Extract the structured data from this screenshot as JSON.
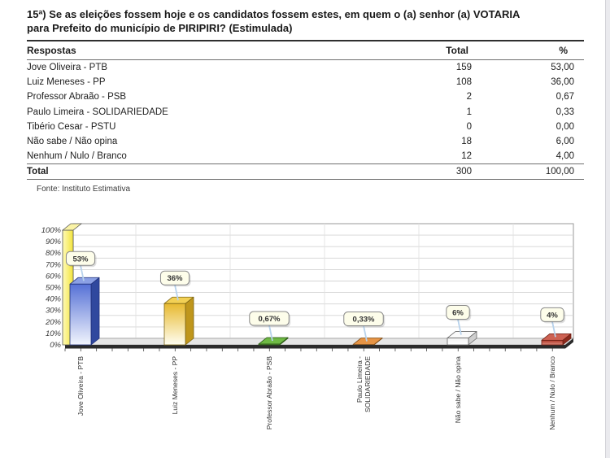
{
  "question": {
    "line1": "15ª) Se as eleições fossem hoje e os candidatos fossem estes, em quem o (a) senhor (a) VOTARIA",
    "line2": "para Prefeito do município de PIRIPIRI? (Estimulada)"
  },
  "table": {
    "headers": {
      "respostas": "Respostas",
      "total": "Total",
      "pct": "%"
    },
    "rows": [
      {
        "label": "Jove Oliveira - PTB",
        "total": "159",
        "pct": "53,00"
      },
      {
        "label": "Luiz Meneses - PP",
        "total": "108",
        "pct": "36,00"
      },
      {
        "label": "Professor Abraão - PSB",
        "total": "2",
        "pct": "0,67"
      },
      {
        "label": "Paulo Limeira - SOLIDARIEDADE",
        "total": "1",
        "pct": "0,33"
      },
      {
        "label": "Tibério Cesar - PSTU",
        "total": "0",
        "pct": "0,00"
      },
      {
        "label": "Não sabe / Não opina",
        "total": "18",
        "pct": "6,00"
      },
      {
        "label": "Nenhum / Nulo / Branco",
        "total": "12",
        "pct": "4,00"
      }
    ],
    "total_row": {
      "label": "Total",
      "total": "300",
      "pct": "100,00"
    },
    "source": "Fonte: Instituto Estimativa"
  },
  "chart_data": {
    "type": "bar",
    "categories": [
      [
        "Jove Oliveira - PTB"
      ],
      [
        "Luiz Meneses - PP"
      ],
      [
        "Professor Abraão - PSB"
      ],
      [
        "Paulo Limeira -",
        "SOLIDARIEDADE"
      ],
      [
        "Não sabe / Não opina"
      ],
      [
        "Nenhum / Nulo / Branco"
      ]
    ],
    "values": [
      53,
      36,
      0.67,
      0.33,
      6,
      4
    ],
    "value_labels": [
      "53%",
      "36%",
      "0,67%",
      "0,33%",
      "6%",
      "4%"
    ],
    "ylim": [
      0,
      100
    ],
    "ytick_step": 10,
    "ytick_labels": [
      "0%",
      "10%",
      "20%",
      "30%",
      "40%",
      "50%",
      "60%",
      "70%",
      "80%",
      "90%",
      "100%"
    ],
    "grid": true,
    "legend": "none",
    "style": "3d-bar",
    "bar_colors": [
      {
        "front_top": "#5671d6",
        "front_bottom": "#f2f5fd",
        "side": "#30489e",
        "top": "#8ba0e4",
        "stroke": "#20307a"
      },
      {
        "front_top": "#e7b92f",
        "front_bottom": "#fffef2",
        "side": "#bf961c",
        "top": "#f2d055",
        "stroke": "#7c6414"
      },
      {
        "front_top": "#57a230",
        "front_bottom": "#d9f0c9",
        "side": "#3e7a20",
        "top": "#6fba45",
        "stroke": "#2c5c15"
      },
      {
        "front_top": "#d9782b",
        "front_bottom": "#f6ddc0",
        "side": "#b05e15",
        "top": "#e69445",
        "stroke": "#7e4a12"
      },
      {
        "front_top": "#f2f2f2",
        "front_bottom": "#ffffff",
        "side": "#cfcfcf",
        "top": "#fafafa",
        "stroke": "#666666"
      },
      {
        "front_top": "#b03a2b",
        "front_bottom": "#dd8b7d",
        "side": "#8c2a1d",
        "top": "#cd6253",
        "stroke": "#6e2015"
      }
    ],
    "wall_color_light": "#fffbb8",
    "wall_color_dark": "#f2e33c",
    "wall_top_color": "#faf3a6",
    "floor_color": "#e6e6e6",
    "axis_band_color": "#2b2b2b",
    "gridline_color": "#d4d4d4",
    "callout_fill": "#fdfdea",
    "callout_stroke": "#8a8a8a",
    "leader_color": "#b7d2ec",
    "label_color": "#333333"
  }
}
